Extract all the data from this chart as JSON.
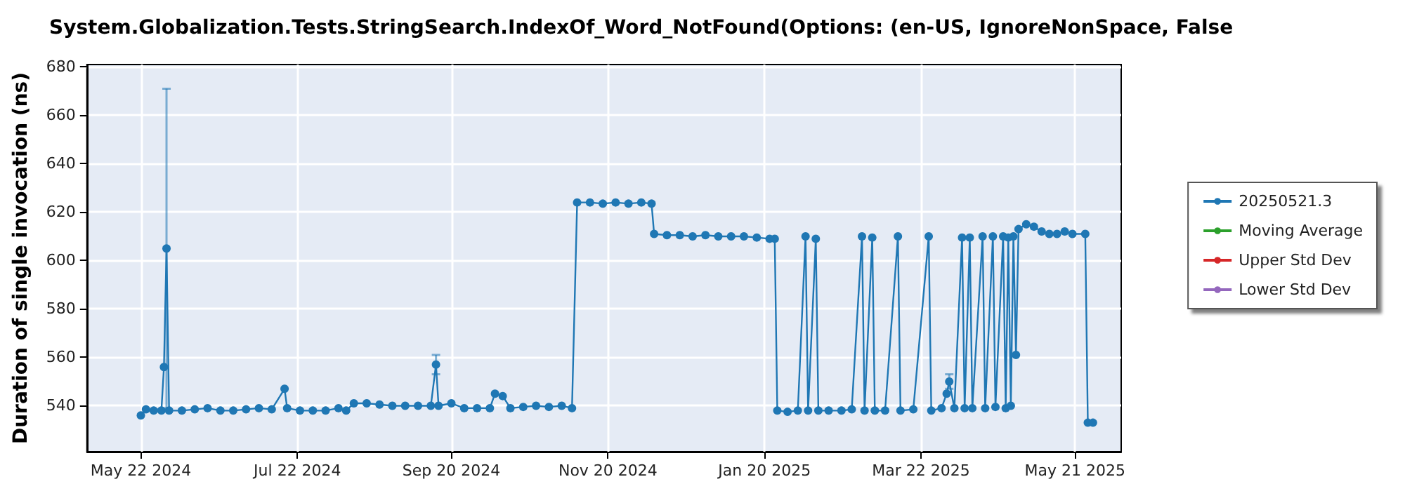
{
  "chart_data": {
    "type": "line",
    "title": "System.Globalization.Tests.StringSearch.IndexOf_Word_NotFound(Options: (en-US, IgnoreNonSpace, False",
    "ylabel": "Duration of single invocation (ns)",
    "x": [
      "2024-05-22",
      "2024-05-24",
      "2024-05-27",
      "2024-05-30",
      "2024-05-31",
      "2024-06-01",
      "2024-06-02",
      "2024-06-07",
      "2024-06-12",
      "2024-06-17",
      "2024-06-22",
      "2024-06-27",
      "2024-07-02",
      "2024-07-07",
      "2024-07-12",
      "2024-07-17",
      "2024-07-18",
      "2024-07-23",
      "2024-07-28",
      "2024-08-02",
      "2024-08-07",
      "2024-08-10",
      "2024-08-13",
      "2024-08-18",
      "2024-08-23",
      "2024-08-28",
      "2024-09-02",
      "2024-09-07",
      "2024-09-12",
      "2024-09-14",
      "2024-09-15",
      "2024-09-20",
      "2024-09-25",
      "2024-09-30",
      "2024-10-05",
      "2024-10-07",
      "2024-10-10",
      "2024-10-13",
      "2024-10-18",
      "2024-10-23",
      "2024-10-28",
      "2024-11-02",
      "2024-11-06",
      "2024-11-08",
      "2024-11-13",
      "2024-11-18",
      "2024-11-23",
      "2024-11-28",
      "2024-12-03",
      "2024-12-07",
      "2024-12-08",
      "2024-12-13",
      "2024-12-18",
      "2024-12-23",
      "2024-12-28",
      "2025-01-02",
      "2025-01-07",
      "2025-01-12",
      "2025-01-17",
      "2025-01-22",
      "2025-01-24",
      "2025-01-25",
      "2025-01-29",
      "2025-02-02",
      "2025-02-05",
      "2025-02-06",
      "2025-02-09",
      "2025-02-10",
      "2025-02-14",
      "2025-02-19",
      "2025-02-23",
      "2025-02-27",
      "2025-02-28",
      "2025-03-03",
      "2025-03-04",
      "2025-03-08",
      "2025-03-13",
      "2025-03-14",
      "2025-03-19",
      "2025-03-25",
      "2025-03-26",
      "2025-03-30",
      "2025-04-01",
      "2025-04-02",
      "2025-04-04",
      "2025-04-07",
      "2025-04-08",
      "2025-04-10",
      "2025-04-11",
      "2025-04-15",
      "2025-04-16",
      "2025-04-19",
      "2025-04-20",
      "2025-04-23",
      "2025-04-24",
      "2025-04-25",
      "2025-04-26",
      "2025-04-27",
      "2025-04-28",
      "2025-04-29",
      "2025-05-02",
      "2025-05-05",
      "2025-05-08",
      "2025-05-11",
      "2025-05-14",
      "2025-05-17",
      "2025-05-20",
      "2025-05-25",
      "2025-05-26",
      "2025-05-28"
    ],
    "series": [
      {
        "name": "20250521.3",
        "color": "#1f77b4",
        "values": [
          536,
          538.5,
          538,
          538,
          556,
          605,
          538,
          538,
          538.5,
          539,
          538,
          538,
          538.5,
          539,
          538.5,
          547,
          539,
          538,
          538,
          538,
          539,
          538,
          541,
          541,
          540.5,
          540,
          540,
          540,
          540,
          557,
          540,
          541,
          539,
          539,
          539,
          545,
          544,
          539,
          539.5,
          540,
          539.5,
          540,
          539,
          624,
          624,
          623.5,
          624,
          623.5,
          624,
          623.5,
          611,
          610.5,
          610.5,
          610,
          610.5,
          610,
          610,
          610,
          609.5,
          609,
          609,
          538,
          537.5,
          538,
          610,
          538,
          609,
          538,
          538,
          538,
          538.5,
          610,
          538,
          609.5,
          538,
          538,
          610,
          538,
          538.5,
          610,
          538,
          539,
          545,
          550,
          539,
          609.5,
          539,
          609.5,
          539,
          610,
          539,
          610,
          539.5,
          610,
          539,
          609.5,
          540,
          610,
          561,
          613,
          615,
          614,
          612,
          611,
          611,
          612,
          611,
          611,
          533,
          533
        ],
        "errors": [
          null,
          null,
          null,
          null,
          null,
          66,
          null,
          null,
          null,
          null,
          null,
          null,
          null,
          null,
          null,
          null,
          null,
          null,
          null,
          null,
          null,
          null,
          null,
          null,
          null,
          null,
          null,
          null,
          null,
          4,
          null,
          null,
          null,
          null,
          null,
          null,
          null,
          null,
          null,
          null,
          null,
          null,
          null,
          null,
          null,
          null,
          null,
          null,
          null,
          null,
          null,
          null,
          null,
          null,
          null,
          null,
          null,
          null,
          null,
          null,
          null,
          null,
          null,
          null,
          null,
          null,
          null,
          null,
          null,
          null,
          null,
          null,
          null,
          null,
          null,
          null,
          null,
          null,
          null,
          null,
          null,
          null,
          null,
          3,
          null,
          null,
          null,
          null,
          null,
          null,
          null,
          null,
          null,
          null,
          null,
          null,
          null,
          null,
          null,
          null,
          null,
          null,
          null,
          null,
          null,
          null,
          null,
          null,
          null,
          null
        ]
      },
      {
        "name": "Moving Average",
        "color": "#2ca02c",
        "values": [
          null,
          null,
          null,
          null,
          null,
          null,
          null,
          null,
          null,
          null,
          null,
          null,
          null,
          null,
          null,
          null,
          null,
          null,
          null,
          null,
          null,
          null,
          null,
          null,
          null,
          null,
          null,
          null,
          null,
          null,
          null,
          null,
          null,
          null,
          null,
          null,
          null,
          null,
          null,
          null,
          null,
          null,
          null,
          null,
          null,
          null,
          null,
          null,
          null,
          null,
          null,
          null,
          null,
          null,
          null,
          null,
          null,
          null,
          null,
          null,
          null,
          null,
          null,
          null,
          null,
          null,
          null,
          null,
          null,
          null,
          null,
          null,
          null,
          null,
          null,
          null,
          null,
          null,
          null,
          null,
          null,
          null,
          null,
          null,
          null,
          null,
          null,
          null,
          null,
          null,
          null,
          null,
          null,
          null,
          null,
          null,
          null,
          null,
          null,
          null,
          null,
          null,
          null,
          null,
          null,
          null,
          null,
          null,
          null,
          null
        ]
      },
      {
        "name": "Upper Std Dev",
        "color": "#d62728",
        "values": [
          null,
          null,
          null,
          null,
          null,
          null,
          null,
          null,
          null,
          null,
          null,
          null,
          null,
          null,
          null,
          null,
          null,
          null,
          null,
          null,
          null,
          null,
          null,
          null,
          null,
          null,
          null,
          null,
          null,
          null,
          null,
          null,
          null,
          null,
          null,
          null,
          null,
          null,
          null,
          null,
          null,
          null,
          null,
          null,
          null,
          null,
          null,
          null,
          null,
          null,
          null,
          null,
          null,
          null,
          null,
          null,
          null,
          null,
          null,
          null,
          null,
          null,
          null,
          null,
          null,
          null,
          null,
          null,
          null,
          null,
          null,
          null,
          null,
          null,
          null,
          null,
          null,
          null,
          null,
          null,
          null,
          null,
          null,
          null,
          null,
          null,
          null,
          null,
          null,
          null,
          null,
          null,
          null,
          null,
          null,
          null,
          null,
          null,
          null,
          null,
          null,
          null,
          null,
          null,
          null,
          null,
          null,
          null,
          null,
          null
        ]
      },
      {
        "name": "Lower Std Dev",
        "color": "#9467bd",
        "values": [
          null,
          null,
          null,
          null,
          null,
          null,
          null,
          null,
          null,
          null,
          null,
          null,
          null,
          null,
          null,
          null,
          null,
          null,
          null,
          null,
          null,
          null,
          null,
          null,
          null,
          null,
          null,
          null,
          null,
          null,
          null,
          null,
          null,
          null,
          null,
          null,
          null,
          null,
          null,
          null,
          null,
          null,
          null,
          null,
          null,
          null,
          null,
          null,
          null,
          null,
          null,
          null,
          null,
          null,
          null,
          null,
          null,
          null,
          null,
          null,
          null,
          null,
          null,
          null,
          null,
          null,
          null,
          null,
          null,
          null,
          null,
          null,
          null,
          null,
          null,
          null,
          null,
          null,
          null,
          null,
          null,
          null,
          null,
          null,
          null,
          null,
          null,
          null,
          null,
          null,
          null,
          null,
          null,
          null,
          null,
          null,
          null,
          null,
          null,
          null,
          null,
          null,
          null,
          null,
          null,
          null,
          null,
          null,
          null,
          null
        ]
      }
    ],
    "xlim": [
      "2024-05-01",
      "2025-06-08"
    ],
    "xticks": [
      {
        "value": "2024-05-22",
        "label": "May 22 2024"
      },
      {
        "value": "2024-07-22",
        "label": "Jul 22 2024"
      },
      {
        "value": "2024-09-20",
        "label": "Sep 20 2024"
      },
      {
        "value": "2024-11-20",
        "label": "Nov 20 2024"
      },
      {
        "value": "2025-01-20",
        "label": "Jan 20 2025"
      },
      {
        "value": "2025-03-22",
        "label": "Mar 22 2025"
      },
      {
        "value": "2025-05-21",
        "label": "May 21 2025"
      }
    ],
    "ylim": [
      521,
      681
    ],
    "yticks": [
      540,
      560,
      580,
      600,
      620,
      640,
      660,
      680
    ],
    "grid": true,
    "legend": "right",
    "marker": "circle",
    "line_style": "solid"
  }
}
